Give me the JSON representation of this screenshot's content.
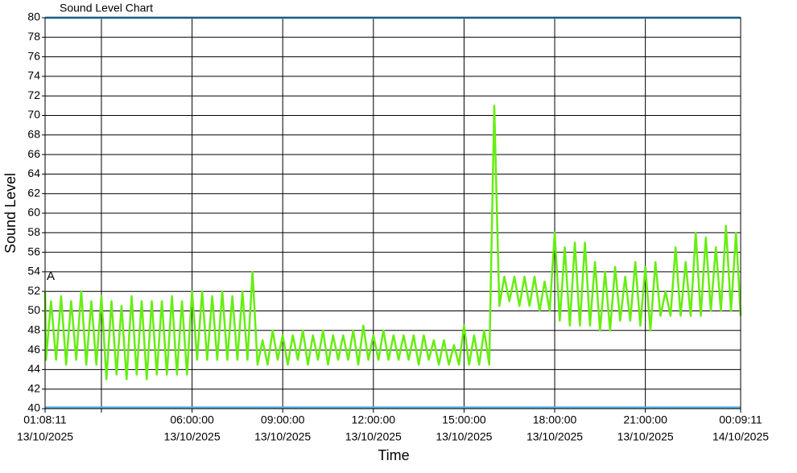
{
  "chart_data": {
    "type": "line",
    "title": "Sound Level Chart",
    "x_label": "Time",
    "y_label": "Sound Level",
    "color": "#66ee11",
    "grid": true,
    "ylim": [
      40,
      80
    ],
    "yticks": [
      40,
      42,
      44,
      46,
      48,
      50,
      52,
      54,
      56,
      58,
      60,
      62,
      64,
      66,
      68,
      70,
      72,
      74,
      76,
      78,
      80
    ],
    "xlim": [
      "2025-10-13T01:08:11",
      "2025-10-14T00:09:11"
    ],
    "xticks": [
      {
        "value": "2025-10-13T01:08:11",
        "label": [
          "01:08:11",
          "13/10/2025"
        ]
      },
      {
        "value": "2025-10-13T03:00:00",
        "label": null
      },
      {
        "value": "2025-10-13T06:00:00",
        "label": [
          "06:00:00",
          "13/10/2025"
        ]
      },
      {
        "value": "2025-10-13T09:00:00",
        "label": [
          "09:00:00",
          "13/10/2025"
        ]
      },
      {
        "value": "2025-10-13T12:00:00",
        "label": [
          "12:00:00",
          "13/10/2025"
        ]
      },
      {
        "value": "2025-10-13T15:00:00",
        "label": [
          "15:00:00",
          "13/10/2025"
        ]
      },
      {
        "value": "2025-10-13T18:00:00",
        "label": [
          "18:00:00",
          "13/10/2025"
        ]
      },
      {
        "value": "2025-10-13T21:00:00",
        "label": [
          "21:00:00",
          "13/10/2025"
        ]
      },
      {
        "value": "2025-10-14T00:09:11",
        "label": [
          "00:09:11",
          "14/10/2025"
        ]
      }
    ],
    "reference_lines": [
      {
        "value": 80,
        "color": "#5aaee6"
      },
      {
        "value": 40.1,
        "color": "#5aaee6"
      }
    ],
    "annotations": [
      {
        "text": "A",
        "x": "2025-10-13T01:08:11",
        "y": 53.5
      }
    ],
    "x": [
      "2025-10-13T01:08:11",
      "2025-10-13T01:10:00",
      "2025-10-13T01:20:00",
      "2025-10-13T01:30:00",
      "2025-10-13T01:40:00",
      "2025-10-13T01:50:00",
      "2025-10-13T02:00:00",
      "2025-10-13T02:10:00",
      "2025-10-13T02:20:00",
      "2025-10-13T02:30:00",
      "2025-10-13T02:40:00",
      "2025-10-13T02:50:00",
      "2025-10-13T03:00:00",
      "2025-10-13T03:10:00",
      "2025-10-13T03:20:00",
      "2025-10-13T03:30:00",
      "2025-10-13T03:40:00",
      "2025-10-13T03:50:00",
      "2025-10-13T04:00:00",
      "2025-10-13T04:10:00",
      "2025-10-13T04:20:00",
      "2025-10-13T04:30:00",
      "2025-10-13T04:40:00",
      "2025-10-13T04:50:00",
      "2025-10-13T05:00:00",
      "2025-10-13T05:10:00",
      "2025-10-13T05:20:00",
      "2025-10-13T05:30:00",
      "2025-10-13T05:40:00",
      "2025-10-13T05:50:00",
      "2025-10-13T06:00:00",
      "2025-10-13T06:10:00",
      "2025-10-13T06:20:00",
      "2025-10-13T06:30:00",
      "2025-10-13T06:40:00",
      "2025-10-13T06:50:00",
      "2025-10-13T07:00:00",
      "2025-10-13T07:10:00",
      "2025-10-13T07:20:00",
      "2025-10-13T07:30:00",
      "2025-10-13T07:40:00",
      "2025-10-13T07:50:00",
      "2025-10-13T08:00:00",
      "2025-10-13T08:10:00",
      "2025-10-13T08:20:00",
      "2025-10-13T08:30:00",
      "2025-10-13T08:40:00",
      "2025-10-13T08:50:00",
      "2025-10-13T09:00:00",
      "2025-10-13T09:10:00",
      "2025-10-13T09:20:00",
      "2025-10-13T09:30:00",
      "2025-10-13T09:40:00",
      "2025-10-13T09:50:00",
      "2025-10-13T10:00:00",
      "2025-10-13T10:10:00",
      "2025-10-13T10:20:00",
      "2025-10-13T10:30:00",
      "2025-10-13T10:40:00",
      "2025-10-13T10:50:00",
      "2025-10-13T11:00:00",
      "2025-10-13T11:10:00",
      "2025-10-13T11:20:00",
      "2025-10-13T11:30:00",
      "2025-10-13T11:40:00",
      "2025-10-13T11:50:00",
      "2025-10-13T12:00:00",
      "2025-10-13T12:10:00",
      "2025-10-13T12:20:00",
      "2025-10-13T12:30:00",
      "2025-10-13T12:40:00",
      "2025-10-13T12:50:00",
      "2025-10-13T13:00:00",
      "2025-10-13T13:10:00",
      "2025-10-13T13:20:00",
      "2025-10-13T13:30:00",
      "2025-10-13T13:40:00",
      "2025-10-13T13:50:00",
      "2025-10-13T14:00:00",
      "2025-10-13T14:10:00",
      "2025-10-13T14:20:00",
      "2025-10-13T14:30:00",
      "2025-10-13T14:40:00",
      "2025-10-13T14:50:00",
      "2025-10-13T15:00:00",
      "2025-10-13T15:10:00",
      "2025-10-13T15:20:00",
      "2025-10-13T15:30:00",
      "2025-10-13T15:40:00",
      "2025-10-13T15:50:00",
      "2025-10-13T16:00:00",
      "2025-10-13T16:10:00",
      "2025-10-13T16:20:00",
      "2025-10-13T16:30:00",
      "2025-10-13T16:40:00",
      "2025-10-13T16:50:00",
      "2025-10-13T17:00:00",
      "2025-10-13T17:10:00",
      "2025-10-13T17:20:00",
      "2025-10-13T17:30:00",
      "2025-10-13T17:40:00",
      "2025-10-13T17:50:00",
      "2025-10-13T18:00:00",
      "2025-10-13T18:10:00",
      "2025-10-13T18:20:00",
      "2025-10-13T18:30:00",
      "2025-10-13T18:40:00",
      "2025-10-13T18:50:00",
      "2025-10-13T19:00:00",
      "2025-10-13T19:10:00",
      "2025-10-13T19:20:00",
      "2025-10-13T19:30:00",
      "2025-10-13T19:40:00",
      "2025-10-13T19:50:00",
      "2025-10-13T20:00:00",
      "2025-10-13T20:10:00",
      "2025-10-13T20:20:00",
      "2025-10-13T20:30:00",
      "2025-10-13T20:40:00",
      "2025-10-13T20:50:00",
      "2025-10-13T21:00:00",
      "2025-10-13T21:10:00",
      "2025-10-13T21:20:00",
      "2025-10-13T21:30:00",
      "2025-10-13T21:40:00",
      "2025-10-13T21:50:00",
      "2025-10-13T22:00:00",
      "2025-10-13T22:10:00",
      "2025-10-13T22:20:00",
      "2025-10-13T22:30:00",
      "2025-10-13T22:40:00",
      "2025-10-13T22:50:00",
      "2025-10-13T23:00:00",
      "2025-10-13T23:10:00",
      "2025-10-13T23:20:00",
      "2025-10-13T23:30:00",
      "2025-10-13T23:40:00",
      "2025-10-13T23:50:00",
      "2025-10-14T00:00:00",
      "2025-10-14T00:09:11"
    ],
    "values": [
      52,
      45,
      51,
      45,
      51.5,
      44.5,
      51,
      45,
      52,
      44.5,
      51,
      44.5,
      51.5,
      43,
      51,
      43.5,
      50.5,
      43,
      51.5,
      43.5,
      51,
      43,
      51,
      43.5,
      51,
      43.5,
      51.5,
      43.5,
      51,
      43.5,
      52,
      45,
      52,
      45,
      51.5,
      45,
      52,
      45,
      51.5,
      45,
      52,
      45,
      54,
      44.5,
      47,
      44.5,
      48,
      45,
      47.5,
      44.5,
      47.5,
      45,
      48,
      44.5,
      47.5,
      45,
      48,
      44.5,
      47.5,
      45,
      47.5,
      45,
      48,
      44.5,
      48.5,
      45,
      47.5,
      45,
      48,
      45,
      47.5,
      45,
      47.5,
      45,
      47.5,
      44.5,
      47.5,
      45,
      47,
      44.5,
      47,
      44.5,
      46.5,
      44.5,
      48.5,
      44.5,
      47.5,
      44.5,
      48,
      44.5,
      71,
      50.5,
      53.5,
      51,
      53.5,
      50.5,
      53.5,
      50.5,
      53.5,
      50,
      53,
      50,
      58,
      49,
      56.5,
      48.5,
      57,
      48.5,
      57,
      48.5,
      55,
      48,
      54,
      48,
      54.5,
      49,
      53.5,
      49,
      55,
      48.5,
      54.5,
      48,
      55,
      49.5,
      52,
      49.5,
      56.5,
      49.5,
      55,
      49.5,
      58,
      49.5,
      57.5,
      50,
      56.5,
      50,
      58.7,
      50,
      58,
      49.5
    ]
  }
}
